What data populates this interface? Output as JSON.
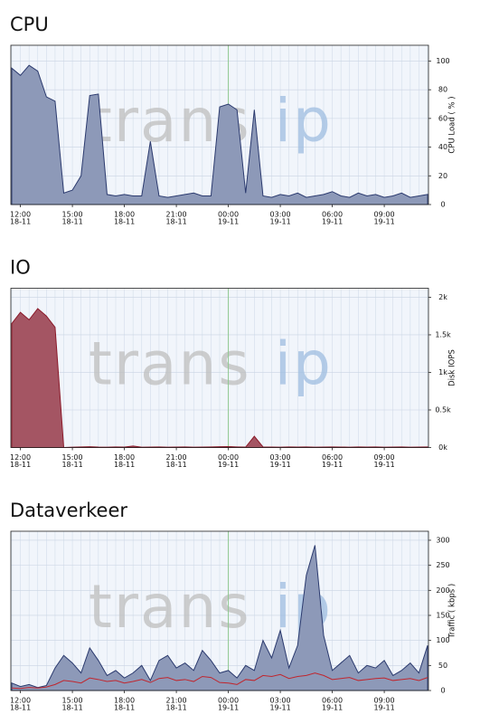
{
  "chart_data": [
    {
      "type": "area",
      "title": "CPU",
      "ylabel": "CPU Load ( % )",
      "watermark": {
        "main": "trans",
        "accent": "ip"
      },
      "categories": [
        null,
        [
          "12:00",
          "18-11"
        ],
        null,
        null,
        null,
        null,
        null,
        [
          "15:00",
          "18-11"
        ],
        null,
        null,
        null,
        null,
        null,
        [
          "18:00",
          "18-11"
        ],
        null,
        null,
        null,
        null,
        null,
        [
          "21:00",
          "18-11"
        ],
        null,
        null,
        null,
        null,
        null,
        [
          "00:00",
          "19-11"
        ],
        null,
        null,
        null,
        null,
        null,
        [
          "03:00",
          "19-11"
        ],
        null,
        null,
        null,
        null,
        null,
        [
          "06:00",
          "19-11"
        ],
        null,
        null,
        null,
        null,
        null,
        [
          "09:00",
          "19-11"
        ],
        null,
        null,
        null,
        null,
        null
      ],
      "series": [
        {
          "color": "#2b3a6e",
          "fill": "#8d99b8",
          "values": [
            95,
            90,
            97,
            93,
            75,
            72,
            8,
            10,
            20,
            76,
            77,
            7,
            6,
            7,
            6,
            6,
            44,
            6,
            5,
            6,
            7,
            8,
            6,
            6,
            68,
            70,
            66,
            8,
            66,
            6,
            5,
            7,
            6,
            8,
            5,
            6,
            7,
            9,
            6,
            5,
            8,
            6,
            7,
            5,
            6,
            8,
            5,
            6,
            7
          ]
        }
      ],
      "ylim": [
        0,
        111
      ],
      "yticks": [
        0,
        20,
        40,
        60,
        80,
        100
      ],
      "grid": true
    },
    {
      "type": "area",
      "title": "IO",
      "ylabel": "Disk IOPS",
      "watermark": {
        "main": "trans",
        "accent": "ip"
      },
      "categories": [
        null,
        [
          "12:00",
          "18-11"
        ],
        null,
        null,
        null,
        null,
        null,
        [
          "15:00",
          "18-11"
        ],
        null,
        null,
        null,
        null,
        null,
        [
          "18:00",
          "18-11"
        ],
        null,
        null,
        null,
        null,
        null,
        [
          "21:00",
          "18-11"
        ],
        null,
        null,
        null,
        null,
        null,
        [
          "00:00",
          "19-11"
        ],
        null,
        null,
        null,
        null,
        null,
        [
          "03:00",
          "19-11"
        ],
        null,
        null,
        null,
        null,
        null,
        [
          "06:00",
          "19-11"
        ],
        null,
        null,
        null,
        null,
        null,
        [
          "09:00",
          "19-11"
        ],
        null,
        null,
        null,
        null,
        null
      ],
      "series": [
        {
          "color": "#8b1a2a",
          "fill": "#a45563",
          "values": [
            1650,
            1800,
            1700,
            1850,
            1750,
            1600,
            0,
            5,
            8,
            10,
            6,
            5,
            8,
            6,
            20,
            5,
            6,
            8,
            5,
            6,
            7,
            5,
            6,
            8,
            10,
            12,
            8,
            6,
            150,
            8,
            6,
            5,
            7,
            6,
            8,
            5,
            6,
            7,
            6,
            5,
            8,
            6,
            7,
            5,
            6,
            8,
            5,
            6,
            7
          ]
        }
      ],
      "ylim": [
        0,
        2120
      ],
      "yticks": [
        {
          "value": 0,
          "label": "0k"
        },
        {
          "value": 500,
          "label": "0.5k"
        },
        {
          "value": 1000,
          "label": "1k"
        },
        {
          "value": 1500,
          "label": "1.5k"
        },
        {
          "value": 2000,
          "label": "2k"
        }
      ],
      "grid": true
    },
    {
      "type": "area",
      "title": "Dataverkeer",
      "ylabel": "Traffic ( kbps )",
      "watermark": {
        "main": "trans",
        "accent": "ip"
      },
      "categories": [
        null,
        [
          "12:00",
          "18-11"
        ],
        null,
        null,
        null,
        null,
        null,
        [
          "15:00",
          "18-11"
        ],
        null,
        null,
        null,
        null,
        null,
        [
          "18:00",
          "18-11"
        ],
        null,
        null,
        null,
        null,
        null,
        [
          "21:00",
          "18-11"
        ],
        null,
        null,
        null,
        null,
        null,
        [
          "00:00",
          "19-11"
        ],
        null,
        null,
        null,
        null,
        null,
        [
          "03:00",
          "19-11"
        ],
        null,
        null,
        null,
        null,
        null,
        [
          "06:00",
          "19-11"
        ],
        null,
        null,
        null,
        null,
        null,
        [
          "09:00",
          "19-11"
        ],
        null,
        null,
        null,
        null,
        null
      ],
      "series": [
        {
          "color": "#2b3a6e",
          "fill": "#8d99b8",
          "values": [
            15,
            8,
            12,
            6,
            10,
            45,
            70,
            55,
            35,
            85,
            60,
            30,
            40,
            25,
            35,
            50,
            20,
            60,
            70,
            45,
            55,
            40,
            80,
            60,
            35,
            40,
            25,
            50,
            40,
            100,
            65,
            120,
            45,
            90,
            230,
            290,
            110,
            40,
            55,
            70,
            35,
            50,
            45,
            60,
            30,
            40,
            55,
            35,
            90
          ]
        },
        {
          "color": "#c0262e",
          "fill": "none",
          "values": [
            5,
            4,
            6,
            5,
            7,
            12,
            20,
            18,
            15,
            25,
            22,
            18,
            20,
            15,
            18,
            22,
            16,
            24,
            26,
            20,
            22,
            18,
            28,
            26,
            16,
            15,
            12,
            22,
            20,
            30,
            28,
            32,
            24,
            28,
            30,
            35,
            30,
            22,
            24,
            26,
            20,
            22,
            24,
            25,
            20,
            22,
            24,
            20,
            26
          ]
        }
      ],
      "ylim": [
        0,
        318
      ],
      "yticks": [
        0,
        50,
        100,
        150,
        200,
        250,
        300
      ],
      "grid": true
    }
  ]
}
